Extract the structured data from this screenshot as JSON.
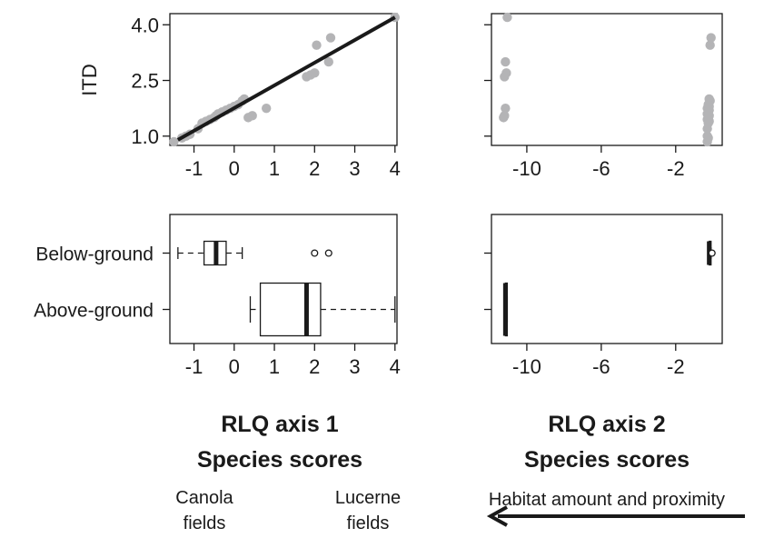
{
  "chart_data": [
    {
      "panel": "top-left",
      "type": "scatter",
      "ylabel": "ITD",
      "xticks": [
        -1,
        0,
        1,
        2,
        3,
        4
      ],
      "yticks": [
        "1.0",
        "2.5",
        "4.0"
      ],
      "xlim": [
        -1.6,
        4.05
      ],
      "ylim": [
        0.75,
        4.3
      ],
      "fit_line": {
        "x": [
          -1.4,
          4.0
        ],
        "y": [
          0.9,
          4.2
        ]
      },
      "points": {
        "x": [
          -1.5,
          -1.3,
          -1.2,
          -1.1,
          -0.9,
          -0.8,
          -0.7,
          -0.6,
          -0.5,
          -0.45,
          -0.4,
          -0.3,
          -0.2,
          -0.1,
          0.0,
          0.1,
          0.2,
          0.25,
          0.35,
          0.45,
          0.8,
          1.8,
          1.9,
          2.0,
          2.05,
          2.35,
          2.4,
          4.0
        ],
        "y": [
          0.85,
          0.95,
          1.0,
          1.05,
          1.2,
          1.35,
          1.4,
          1.45,
          1.5,
          1.55,
          1.6,
          1.65,
          1.7,
          1.75,
          1.8,
          1.85,
          1.95,
          2.0,
          1.5,
          1.55,
          1.75,
          2.6,
          2.65,
          2.7,
          3.45,
          3.0,
          3.65,
          4.2
        ]
      }
    },
    {
      "panel": "top-right",
      "type": "scatter",
      "xticks": [
        -10,
        -6,
        -2
      ],
      "xlim": [
        -11.9,
        0.5
      ],
      "ylim": [
        0.75,
        4.3
      ],
      "points": {
        "x": [
          -11.05,
          -11.15,
          -11.1,
          -11.2,
          -11.15,
          -11.25,
          -11.2,
          -0.2,
          -0.15,
          -0.25,
          -0.2,
          -0.3,
          -0.2,
          -0.25,
          -0.3,
          -0.2,
          -0.25,
          -0.3,
          -0.2,
          -0.25,
          -0.3,
          -0.3,
          -0.25,
          -0.3,
          -0.1,
          -0.15
        ],
        "y": [
          4.2,
          3.0,
          2.7,
          2.6,
          1.75,
          1.5,
          1.55,
          2.0,
          1.95,
          1.85,
          1.8,
          1.75,
          1.7,
          1.65,
          1.6,
          1.55,
          1.5,
          1.45,
          1.4,
          1.35,
          1.2,
          1.0,
          0.95,
          0.85,
          3.65,
          3.45
        ]
      }
    },
    {
      "panel": "bottom-left",
      "type": "box",
      "categories": [
        "Below-ground",
        "Above-ground"
      ],
      "xticks": [
        -1,
        0,
        1,
        2,
        3,
        4
      ],
      "xlim": [
        -1.6,
        4.05
      ],
      "xlabel_line1": "RLQ axis 1",
      "xlabel_line2": "Species scores",
      "boxes": [
        {
          "name": "Below-ground",
          "min": -1.4,
          "q1": -0.75,
          "median": -0.45,
          "q3": -0.2,
          "max": 0.2,
          "outliers": [
            2.0,
            2.35
          ]
        },
        {
          "name": "Above-ground",
          "min": 0.4,
          "q1": 0.65,
          "median": 1.8,
          "q3": 2.15,
          "max": 4.0,
          "outliers": []
        }
      ]
    },
    {
      "panel": "bottom-right",
      "type": "box",
      "categories": [
        "Below-ground",
        "Above-ground"
      ],
      "xticks": [
        -10,
        -6,
        -2
      ],
      "xlim": [
        -11.9,
        0.5
      ],
      "xlabel_line1": "RLQ axis 2",
      "xlabel_line2": "Species scores",
      "boxes": [
        {
          "name": "Below-ground",
          "min": -0.25,
          "q1": -0.2,
          "median": -0.2,
          "q3": -0.15,
          "max": -0.1,
          "outliers": [
            -0.05
          ]
        },
        {
          "name": "Above-ground",
          "min": -11.2,
          "q1": -11.15,
          "median": -11.15,
          "q3": -11.1,
          "max": -11.05,
          "outliers": []
        }
      ]
    }
  ],
  "annotations": {
    "left_label": [
      "Canola",
      "fields"
    ],
    "right_label": [
      "Lucerne",
      "fields"
    ],
    "habitat_label": "Habitat amount and proximity"
  }
}
